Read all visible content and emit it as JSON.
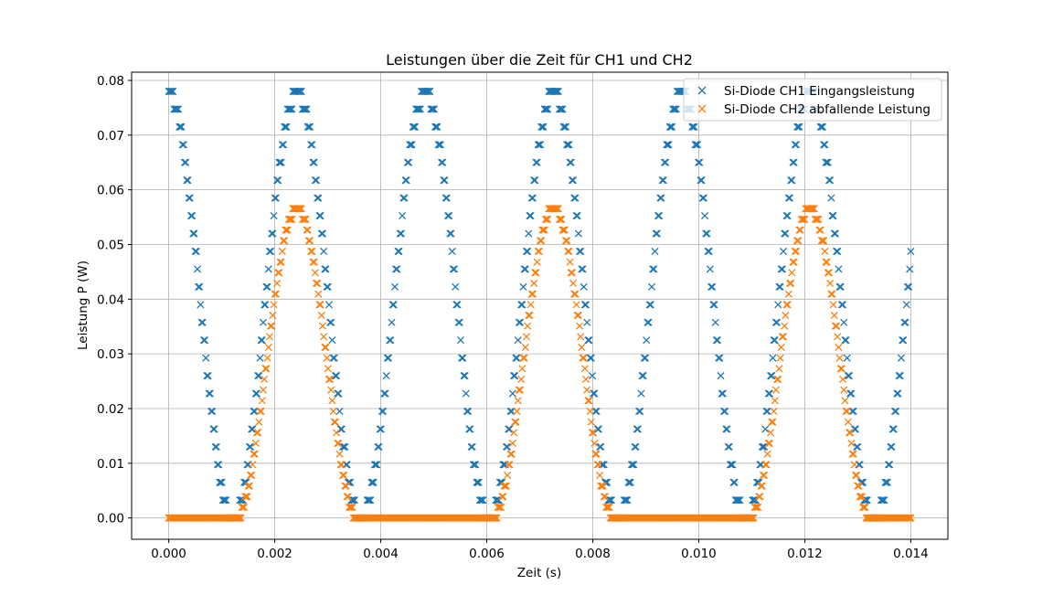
{
  "chart_data": {
    "type": "scatter",
    "title": "Leistungen über die Zeit für CH1 und CH2",
    "xlabel": "Zeit (s)",
    "ylabel": "Leistung P (W)",
    "xlim": [
      -0.0007,
      0.0147
    ],
    "ylim": [
      -0.0039,
      0.0815
    ],
    "x_ticks": [
      0.0,
      0.002,
      0.004,
      0.006,
      0.008,
      0.01,
      0.012,
      0.014
    ],
    "x_tick_labels": [
      "0.000",
      "0.002",
      "0.004",
      "0.006",
      "0.008",
      "0.010",
      "0.012",
      "0.014"
    ],
    "y_ticks": [
      0.0,
      0.01,
      0.02,
      0.03,
      0.04,
      0.05,
      0.06,
      0.07,
      0.08
    ],
    "y_tick_labels": [
      "0.00",
      "0.01",
      "0.02",
      "0.03",
      "0.04",
      "0.05",
      "0.06",
      "0.07",
      "0.08"
    ],
    "grid": true,
    "legend_position": "top-right",
    "marker": "x",
    "x_range": [
      0.0,
      0.014
    ],
    "points_per_series": 700,
    "series": [
      {
        "name": "Si-Diode CH1 Eingangsleistung",
        "color": "#1f77b4",
        "model": "rectified_sine_squared",
        "amplitude": 0.0775,
        "period_half": 0.00242,
        "phase_peak": 0.0,
        "level_step": 0.00325
      },
      {
        "name": "Si-Diode CH2 abfallende Leistung",
        "color": "#ff7f0e",
        "model": "half_wave_diode",
        "amplitude": 0.0775,
        "period_half": 0.00242,
        "phase_peak": 0.0,
        "positive_peak_at": 0.00242,
        "peak": 0.0565,
        "start_at": 0.00128,
        "end_at": 0.00358,
        "level_step": 0.00325
      }
    ]
  }
}
